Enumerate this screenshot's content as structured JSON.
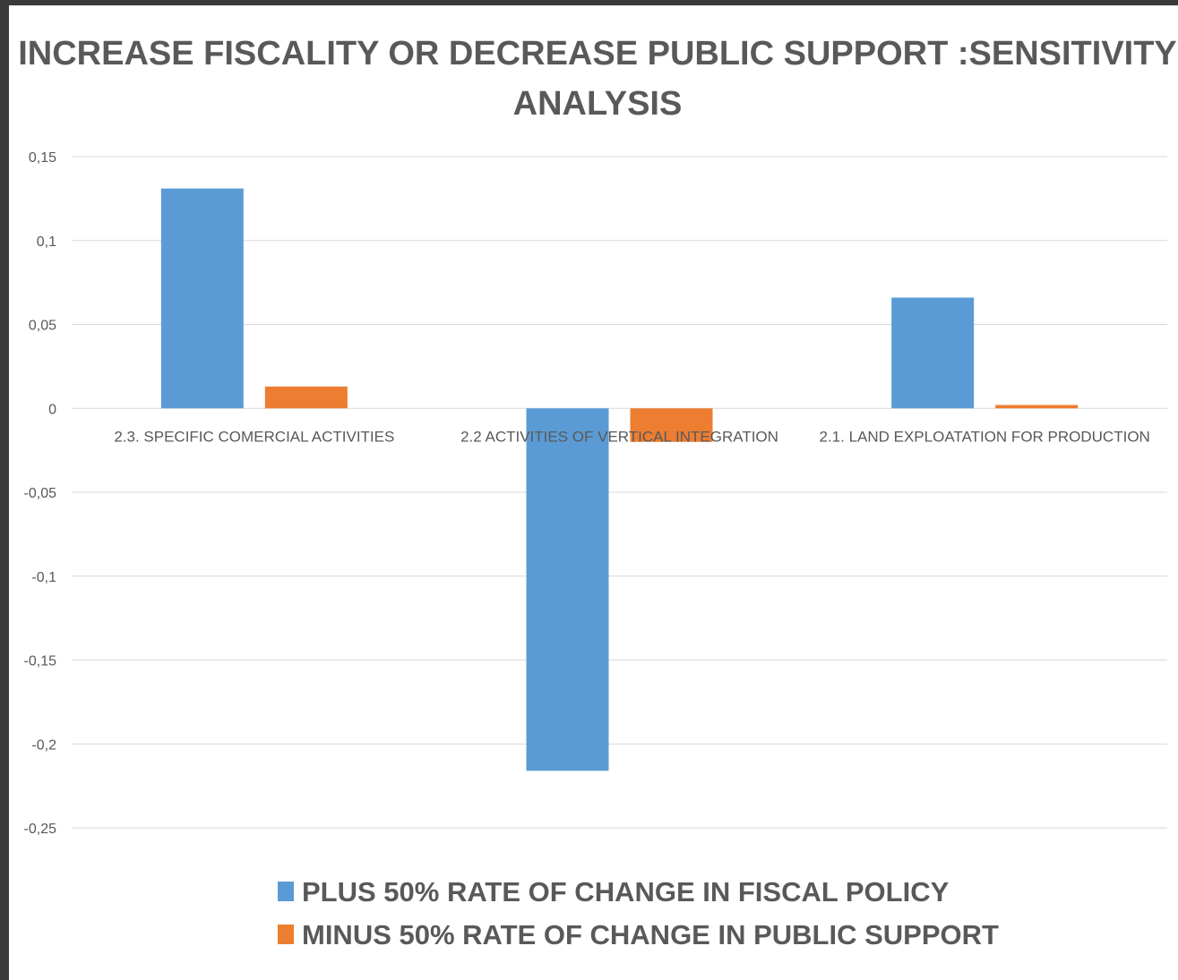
{
  "chart_data": {
    "type": "bar",
    "title_lines": [
      "INCREASE FISCALITY OR DECREASE PUBLIC SUPPORT :SENSITIVITY",
      "ANALYSIS"
    ],
    "categories": [
      "2.3. SPECIFIC COMERCIAL ACTIVITIES",
      "2.2 ACTIVITIES OF VERTICAL INTEGRATION",
      "2.1. LAND EXPLOATATION FOR PRODUCTION"
    ],
    "series": [
      {
        "name": "PLUS 50% RATE OF CHANGE IN FISCAL POLICY",
        "color": "#5b9bd5",
        "values": [
          0.131,
          -0.216,
          0.066
        ]
      },
      {
        "name": "MINUS  50% RATE OF CHANGE IN PUBLIC SUPPORT",
        "color": "#ed7d31",
        "values": [
          0.013,
          -0.02,
          0.002
        ]
      }
    ],
    "ylim": [
      -0.25,
      0.15
    ],
    "yticks": [
      0.15,
      0.1,
      0.05,
      0,
      -0.05,
      -0.1,
      -0.15,
      -0.2,
      -0.25
    ],
    "ytick_labels": [
      "0,15",
      "0,1",
      "0,05",
      "0",
      "-0,05",
      "-0,1",
      "-0,15",
      "-0,2",
      "-0,25"
    ],
    "grid": true,
    "legend_position": "bottom"
  }
}
